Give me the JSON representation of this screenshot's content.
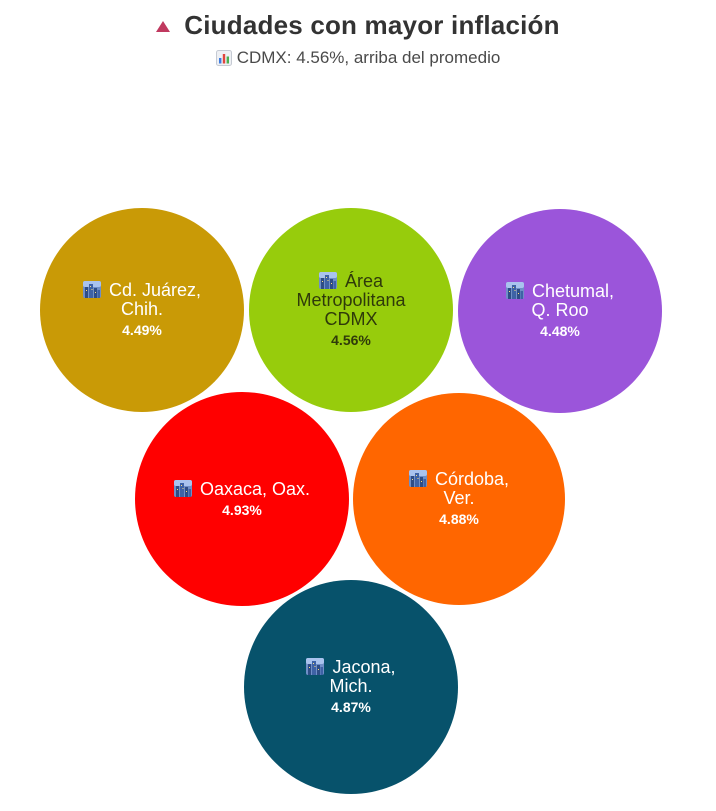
{
  "header": {
    "title": "Ciudades con mayor inflación",
    "title_icon": "triangle-up-icon",
    "subtitle": "CDMX: 4.56%, arriba del promedio",
    "subtitle_icon": "bar-chart-icon"
  },
  "chart_data": {
    "type": "bubble",
    "title": "Ciudades con mayor inflación",
    "subtitle": "CDMX: 4.56%, arriba del promedio",
    "items": [
      {
        "name": "Cd. Juárez, Chih.",
        "value": 4.49,
        "label": "4.49%",
        "color": "#c99a06"
      },
      {
        "name": "Área Metropolitana CDMX",
        "value": 4.56,
        "label": "4.56%",
        "color": "#97cc0c"
      },
      {
        "name": "Chetumal, Q. Roo",
        "value": 4.48,
        "label": "4.48%",
        "color": "#9b55da"
      },
      {
        "name": "Oaxaca, Oax.",
        "value": 4.93,
        "label": "4.93%",
        "color": "#ff0000"
      },
      {
        "name": "Córdoba, Ver.",
        "value": 4.88,
        "label": "4.88%",
        "color": "#ff6600"
      },
      {
        "name": "Jacona, Mich.",
        "value": 4.87,
        "label": "4.87%",
        "color": "#07526b"
      }
    ],
    "label_icon": "cityscape-icon"
  }
}
